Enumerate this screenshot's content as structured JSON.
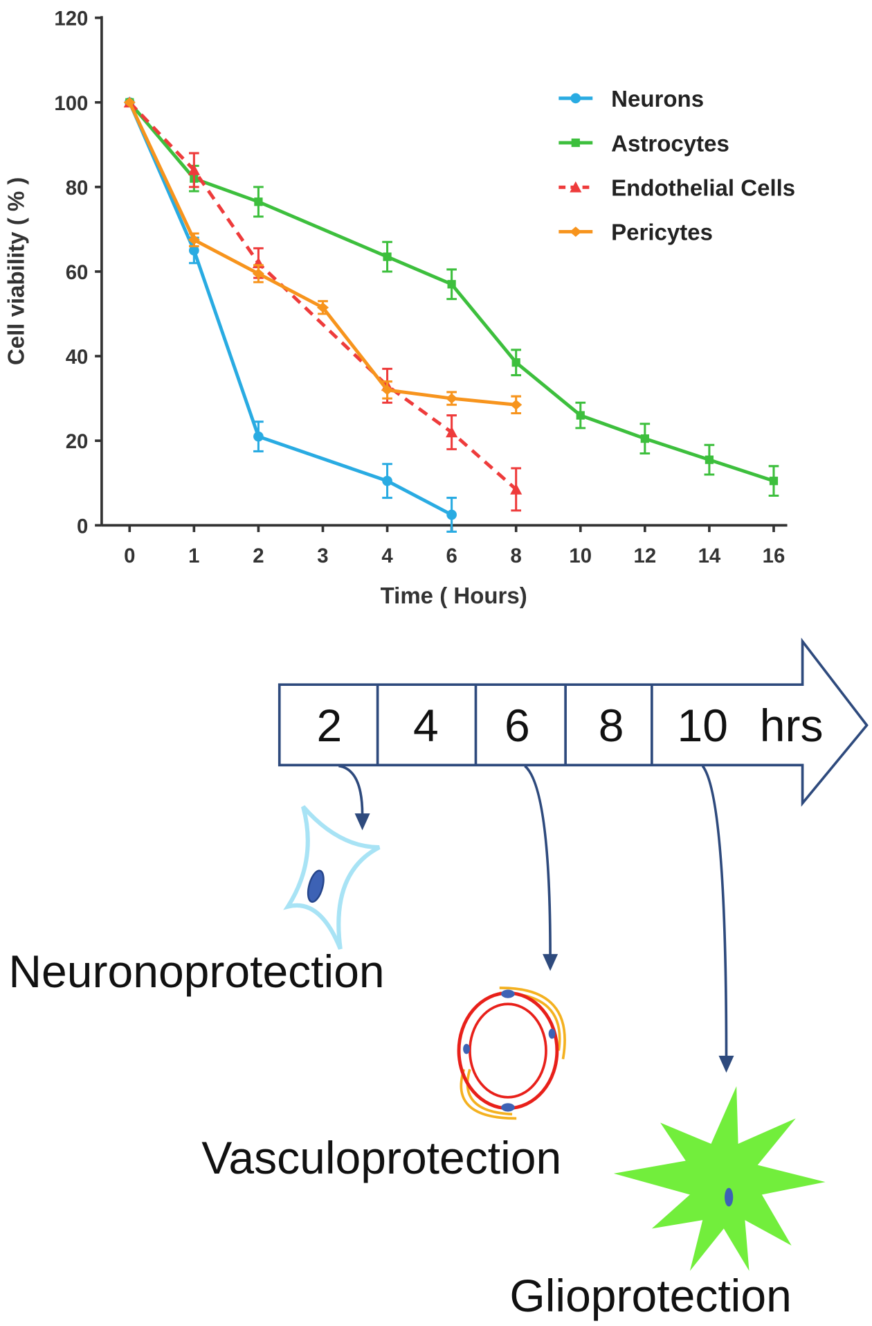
{
  "chart_data": {
    "type": "line",
    "xlabel": "Time ( Hours)",
    "ylabel": "Cell viability ( % )",
    "categories": [
      0,
      1,
      2,
      3,
      4,
      6,
      8,
      10,
      12,
      14,
      16
    ],
    "ylim": [
      0,
      120
    ],
    "yticks": [
      0,
      20,
      40,
      60,
      80,
      100,
      120
    ],
    "legend": "upper right",
    "series": [
      {
        "name": "Neurons",
        "color": "#29abe2",
        "x": [
          0,
          1,
          2,
          4,
          6
        ],
        "values": [
          100,
          65,
          21,
          10.5,
          2.5
        ],
        "errors": [
          0,
          3,
          3.5,
          4,
          4
        ]
      },
      {
        "name": "Astrocytes",
        "color": "#3dbf3d",
        "x": [
          0,
          1,
          2,
          4,
          6,
          8,
          10,
          12,
          14,
          16
        ],
        "values": [
          100,
          82,
          76.5,
          63.5,
          57,
          38.5,
          26,
          20.5,
          15.5,
          10.5
        ],
        "errors": [
          0,
          3,
          3.5,
          3.5,
          3.5,
          3,
          3,
          3.5,
          3.5,
          3.5
        ]
      },
      {
        "name": "Endothelial Cells",
        "color": "#ee3b3b",
        "dashed": true,
        "x": [
          0,
          1,
          2,
          4,
          6,
          8
        ],
        "values": [
          100,
          84,
          62,
          33,
          22,
          8.5
        ],
        "errors": [
          0,
          4,
          3.5,
          4,
          4,
          5
        ]
      },
      {
        "name": "Pericytes",
        "color": "#f7941d",
        "x": [
          0,
          1,
          2,
          3,
          4,
          6,
          8
        ],
        "values": [
          100,
          67.5,
          59.5,
          51.5,
          32,
          30,
          28.5
        ],
        "errors": [
          0,
          1.5,
          2,
          1.5,
          2,
          1.5,
          2
        ]
      }
    ]
  },
  "timeline": {
    "steps": [
      "2",
      "4",
      "6",
      "8",
      "10"
    ],
    "unit": "hrs"
  },
  "outcomes": [
    "Neuronoprotection",
    "Vasculoprotection",
    "Glioprotection"
  ]
}
